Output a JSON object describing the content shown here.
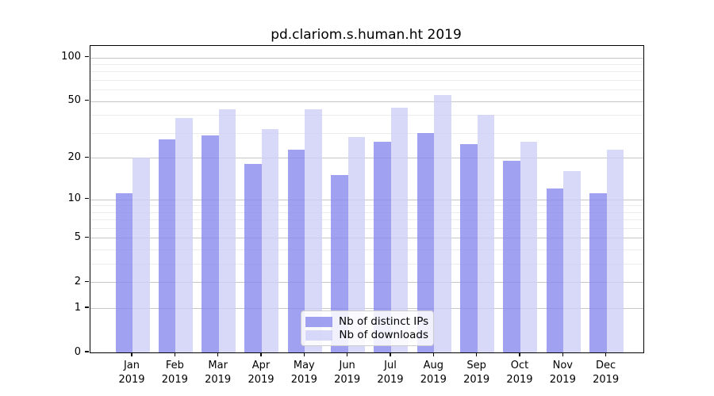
{
  "chart_data": {
    "type": "bar",
    "title": "pd.clariom.s.human.ht 2019",
    "year": "2019",
    "months": [
      "Jan",
      "Feb",
      "Mar",
      "Apr",
      "May",
      "Jun",
      "Jul",
      "Aug",
      "Sep",
      "Oct",
      "Nov",
      "Dec"
    ],
    "series": [
      {
        "name": "Nb of distinct IPs",
        "color": "rgba(138,138,238,0.8)",
        "values": [
          11,
          27,
          29,
          18,
          23,
          15,
          26,
          30,
          25,
          19,
          12,
          11
        ]
      },
      {
        "name": "Nb of downloads",
        "color": "rgba(206,206,247,0.8)",
        "values": [
          20,
          38,
          44,
          32,
          44,
          28,
          45,
          55,
          40,
          26,
          16,
          23
        ]
      }
    ],
    "xlabel": "",
    "ylabel": "",
    "y_scale": "log10(1+v)",
    "y_ticks": [
      0,
      1,
      2,
      5,
      10,
      20,
      50,
      100
    ],
    "y_minor_gridlines": [
      3,
      4,
      6,
      7,
      8,
      9,
      30,
      40,
      60,
      70,
      80,
      90
    ],
    "ylim": [
      0,
      120
    ],
    "grid": true,
    "legend_position": "inside-bottom-center"
  }
}
